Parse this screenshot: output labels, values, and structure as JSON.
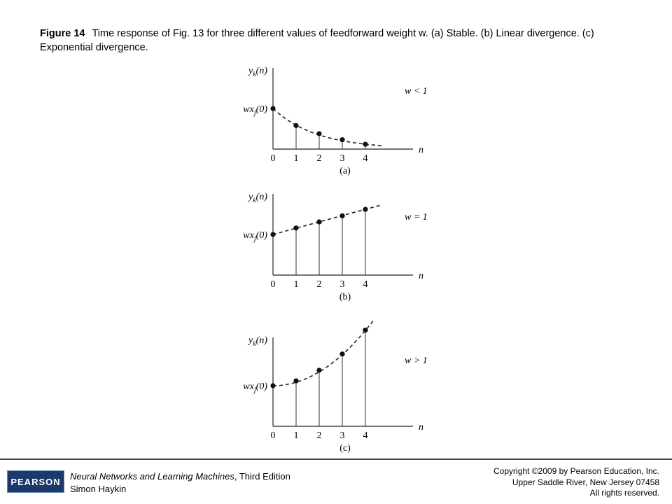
{
  "caption": {
    "label": "Figure 14",
    "text": "Time response of Fig. 13 for three different values of feedforward weight w. (a) Stable. (b) Linear divergence. (c) Exponential divergence."
  },
  "panels": [
    {
      "id": "a",
      "y_axis_label": "y_k(n)",
      "y0_label": "wx_j(0)",
      "x_axis_label": "n",
      "condition": "w < 1",
      "sublabel": "(a)",
      "x_ticks": [
        "0",
        "1",
        "2",
        "3",
        "4"
      ],
      "values": [
        1.0,
        0.58,
        0.38,
        0.23,
        0.12
      ],
      "trend": "decay"
    },
    {
      "id": "b",
      "y_axis_label": "y_k(n)",
      "y0_label": "wx_j(0)",
      "x_axis_label": "n",
      "condition": "w = 1",
      "sublabel": "(b)",
      "x_ticks": [
        "0",
        "1",
        "2",
        "3",
        "4"
      ],
      "values": [
        1.0,
        1.16,
        1.31,
        1.46,
        1.62
      ],
      "trend": "linear"
    },
    {
      "id": "c",
      "y_axis_label": "y_k(n)",
      "y0_label": "wx_j(0)",
      "x_axis_label": "n",
      "condition": "w > 1",
      "sublabel": "(c)",
      "x_ticks": [
        "0",
        "1",
        "2",
        "3",
        "4"
      ],
      "values": [
        1.0,
        1.12,
        1.38,
        1.78,
        2.37
      ],
      "trend": "exponential"
    }
  ],
  "footer": {
    "logo": "PEARSON",
    "book_title": "Neural Networks and Learning Machines",
    "book_edition": ", Third Edition",
    "author": "Simon Haykin",
    "copyright": "Copyright ©2009 by Pearson Education, Inc.",
    "address": "Upper Saddle River, New Jersey 07458",
    "rights": "All rights reserved."
  }
}
